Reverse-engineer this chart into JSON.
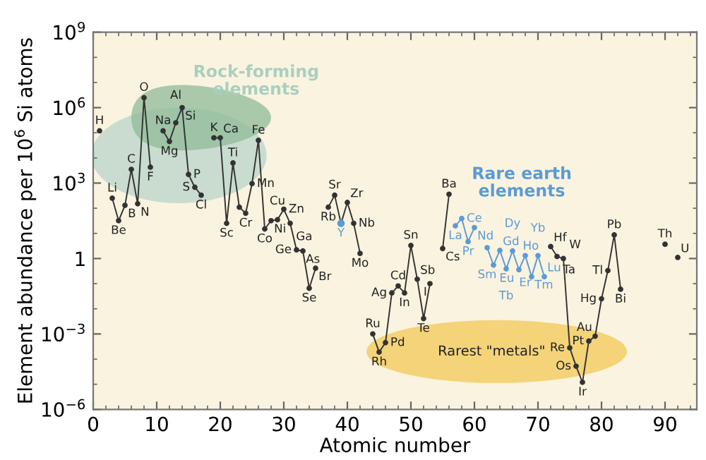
{
  "chart_data": {
    "type": "line",
    "xlabel": "Atomic number",
    "ylabel": "Element abundance per 10$^{6}$ Si atoms",
    "xlim": [
      0,
      95
    ],
    "xticks": [
      0,
      10,
      20,
      30,
      40,
      50,
      60,
      70,
      80,
      90
    ],
    "ylim": [
      1e-06,
      1000000000.0
    ],
    "yticks": [
      {
        "value": 1e-06,
        "label": "10$^{−6}$"
      },
      {
        "value": 0.001,
        "label": "10$^{−3}$"
      },
      {
        "value": 1,
        "label": "1"
      },
      {
        "value": 1000.0,
        "label": "10$^{3}$"
      },
      {
        "value": 1000000.0,
        "label": "10$^{6}$"
      },
      {
        "value": 1000000000.0,
        "label": "10$^{9}$"
      }
    ],
    "log": "y",
    "grid": false,
    "marker": "circle",
    "line_style": "solid",
    "series": [
      {
        "color": "#333333",
        "x": [
          1,
          2,
          3,
          4,
          5,
          6,
          7,
          8,
          9,
          10,
          11,
          12,
          13,
          14,
          15,
          16,
          17,
          18,
          19,
          20,
          21,
          22,
          23,
          24,
          25,
          26,
          27,
          28,
          29,
          30,
          31,
          32,
          33,
          34,
          35,
          36,
          37,
          38,
          39,
          40,
          41,
          42,
          43,
          44,
          45,
          46,
          47,
          48,
          49,
          50,
          51,
          52,
          53,
          54,
          55,
          56,
          57,
          58,
          59,
          60,
          61,
          62,
          63,
          64,
          65,
          66,
          67,
          68,
          69,
          70,
          71,
          72,
          73,
          74,
          75,
          76,
          77,
          78,
          79,
          80,
          81,
          82,
          83,
          84,
          85,
          86,
          87,
          88,
          89,
          90,
          91,
          92
        ],
        "values": [
          120000.0,
          null,
          250,
          32,
          130,
          3500,
          150,
          2500000.0,
          4300,
          null,
          120000.0,
          45000.0,
          250000.0,
          1000000.0,
          2200,
          680,
          330,
          null,
          63000.0,
          63000.0,
          25,
          6300,
          110,
          63,
          950,
          50000.0,
          15,
          32,
          35,
          91,
          25,
          2.2,
          2,
          0.066,
          0.41,
          null,
          110,
          330,
          25,
          170,
          25,
          1.6,
          null,
          0.001,
          0.00019,
          0.00045,
          0.043,
          0.081,
          0.043,
          3.3,
          0.15,
          0.0041,
          0.1,
          null,
          2.5,
          360,
          null,
          null,
          null,
          null,
          null,
          null,
          null,
          null,
          null,
          null,
          null,
          null,
          null,
          null,
          null,
          3,
          1.2,
          1.0,
          0.00028,
          5.2e-05,
          1.2e-05,
          0.00052,
          0.00081,
          0.025,
          0.33,
          8.7,
          0.06,
          null,
          null,
          null,
          null,
          null,
          null,
          3.7,
          null,
          1.1
        ]
      },
      {
        "color": "#5b9bd5",
        "x": [
          57,
          58,
          59,
          60,
          61,
          62,
          63,
          64,
          65,
          66,
          67,
          68,
          69,
          70,
          71
        ],
        "values": [
          20,
          39,
          4.7,
          17,
          null,
          2.7,
          0.55,
          2.1,
          0.39,
          2,
          0.36,
          1.3,
          0.19,
          1.3,
          0.19
        ]
      },
      {
        "color": "#5b9bd5",
        "type": "scatter",
        "x": [
          39
        ],
        "values": [
          25
        ]
      }
    ],
    "annotations": [
      "Rock-forming elements",
      "Rare earth elements",
      "Rarest \"metals\"",
      {
        "text": "H",
        "x": 1,
        "y": 120000.0
      },
      {
        "text": "Li",
        "x": 3,
        "y": 250
      },
      {
        "text": "Be",
        "x": 4,
        "y": 32
      },
      {
        "text": "B",
        "x": 5,
        "y": 130
      },
      {
        "text": "C",
        "x": 6,
        "y": 3500
      },
      {
        "text": "N",
        "x": 7,
        "y": 150
      },
      {
        "text": "O",
        "x": 8,
        "y": 2500000.0
      },
      {
        "text": "F",
        "x": 9,
        "y": 4300
      },
      {
        "text": "Na",
        "x": 11,
        "y": 120000.0
      },
      {
        "text": "Mg",
        "x": 12,
        "y": 45000.0
      },
      {
        "text": "Al",
        "x": 13,
        "y": 250000.0
      },
      {
        "text": "Si",
        "x": 14,
        "y": 1000000.0
      },
      {
        "text": "P",
        "x": 15,
        "y": 2200
      },
      {
        "text": "S",
        "x": 16,
        "y": 680
      },
      {
        "text": "Cl",
        "x": 17,
        "y": 330
      },
      {
        "text": "K",
        "x": 19,
        "y": 63000.0
      },
      {
        "text": "Ca",
        "x": 20,
        "y": 63000.0
      },
      {
        "text": "Sc",
        "x": 21,
        "y": 25
      },
      {
        "text": "Ti",
        "x": 22,
        "y": 6300
      },
      {
        "text": "Cr",
        "x": 24,
        "y": 63
      },
      {
        "text": "Mn",
        "x": 25,
        "y": 950
      },
      {
        "text": "Fe",
        "x": 26,
        "y": 50000.0
      },
      {
        "text": "Co",
        "x": 27,
        "y": 15
      },
      {
        "text": "Ni",
        "x": 28,
        "y": 32
      },
      {
        "text": "Cu",
        "x": 29,
        "y": 35
      },
      {
        "text": "Zn",
        "x": 30,
        "y": 91
      },
      {
        "text": "Ga",
        "x": 31,
        "y": 25
      },
      {
        "text": "Ge",
        "x": 32,
        "y": 2.2
      },
      {
        "text": "As",
        "x": 33,
        "y": 2
      },
      {
        "text": "Se",
        "x": 34,
        "y": 0.066
      },
      {
        "text": "Br",
        "x": 35,
        "y": 0.41
      },
      {
        "text": "Rb",
        "x": 37,
        "y": 110
      },
      {
        "text": "Sr",
        "x": 38,
        "y": 330
      },
      {
        "text": "Y",
        "x": 39,
        "y": 25
      },
      {
        "text": "Zr",
        "x": 40,
        "y": 170
      },
      {
        "text": "Nb",
        "x": 41,
        "y": 25
      },
      {
        "text": "Mo",
        "x": 42,
        "y": 1.6
      },
      {
        "text": "Ru",
        "x": 44,
        "y": 0.001
      },
      {
        "text": "Rh",
        "x": 45,
        "y": 0.00019
      },
      {
        "text": "Pd",
        "x": 46,
        "y": 0.00045
      },
      {
        "text": "Ag",
        "x": 47,
        "y": 0.043
      },
      {
        "text": "Cd",
        "x": 48,
        "y": 0.081
      },
      {
        "text": "In",
        "x": 49,
        "y": 0.043
      },
      {
        "text": "Sn",
        "x": 50,
        "y": 3.3
      },
      {
        "text": "Sb",
        "x": 51,
        "y": 0.15
      },
      {
        "text": "Te",
        "x": 52,
        "y": 0.0041
      },
      {
        "text": "I",
        "x": 53,
        "y": 0.1
      },
      {
        "text": "Cs",
        "x": 55,
        "y": 2.5
      },
      {
        "text": "Ba",
        "x": 56,
        "y": 360
      },
      {
        "text": "La",
        "x": 57,
        "y": 20
      },
      {
        "text": "Ce",
        "x": 58,
        "y": 39
      },
      {
        "text": "Pr",
        "x": 59,
        "y": 4.7
      },
      {
        "text": "Nd",
        "x": 60,
        "y": 17
      },
      {
        "text": "Sm",
        "x": 62,
        "y": 2.7
      },
      {
        "text": "Eu",
        "x": 63,
        "y": 0.55
      },
      {
        "text": "Gd",
        "x": 64,
        "y": 2.1
      },
      {
        "text": "Tb",
        "x": 65,
        "y": 0.39
      },
      {
        "text": "Dy",
        "x": 66,
        "y": 2
      },
      {
        "text": "Ho",
        "x": 67,
        "y": 0.36
      },
      {
        "text": "Er",
        "x": 68,
        "y": 1.3
      },
      {
        "text": "Tm",
        "x": 69,
        "y": 0.19
      },
      {
        "text": "Yb",
        "x": 70,
        "y": 1.3
      },
      {
        "text": "Lu",
        "x": 71,
        "y": 0.19
      },
      {
        "text": "Hf",
        "x": 72,
        "y": 3
      },
      {
        "text": "Ta",
        "x": 73,
        "y": 1.2
      },
      {
        "text": "W",
        "x": 74,
        "y": 1.0
      },
      {
        "text": "Re",
        "x": 75,
        "y": 0.00028
      },
      {
        "text": "Os",
        "x": 76,
        "y": 5.2e-05
      },
      {
        "text": "Ir",
        "x": 77,
        "y": 1.2e-05
      },
      {
        "text": "Pt",
        "x": 78,
        "y": 0.00052
      },
      {
        "text": "Au",
        "x": 79,
        "y": 0.00081
      },
      {
        "text": "Hg",
        "x": 80,
        "y": 0.025
      },
      {
        "text": "Tl",
        "x": 81,
        "y": 0.33
      },
      {
        "text": "Pb",
        "x": 82,
        "y": 8.7
      },
      {
        "text": "Bi",
        "x": 83,
        "y": 0.06
      },
      {
        "text": "Th",
        "x": 90,
        "y": 3.7
      },
      {
        "text": "U",
        "x": 92,
        "y": 1.1
      }
    ]
  }
}
